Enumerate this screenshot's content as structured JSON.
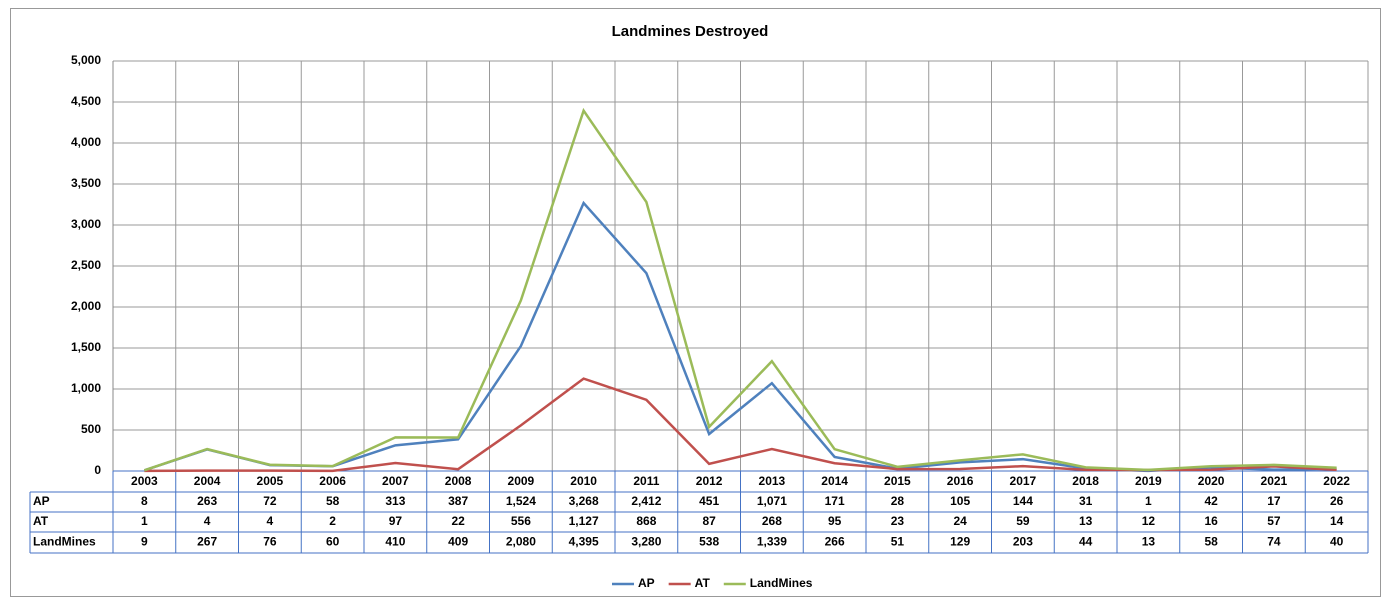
{
  "chart_data": {
    "type": "line",
    "title": "Landmines  Destroyed",
    "categories": [
      "2003",
      "2004",
      "2005",
      "2006",
      "2007",
      "2008",
      "2009",
      "2010",
      "2011",
      "2012",
      "2013",
      "2014",
      "2015",
      "2016",
      "2017",
      "2018",
      "2019",
      "2020",
      "2021",
      "2022"
    ],
    "series": [
      {
        "name": "AP",
        "color": "#4f81bd",
        "values": [
          8,
          263,
          72,
          58,
          313,
          387,
          1524,
          3268,
          2412,
          451,
          1071,
          171,
          28,
          105,
          144,
          31,
          1,
          42,
          17,
          26
        ],
        "value_labels": [
          "8",
          "263",
          "72",
          "58",
          "313",
          "387",
          "1,524",
          "3,268",
          "2,412",
          "451",
          "1,071",
          "171",
          "28",
          "105",
          "144",
          "31",
          "1",
          "42",
          "17",
          "26"
        ]
      },
      {
        "name": "AT",
        "color": "#c0504d",
        "values": [
          1,
          4,
          4,
          2,
          97,
          22,
          556,
          1127,
          868,
          87,
          268,
          95,
          23,
          24,
          59,
          13,
          12,
          16,
          57,
          14
        ],
        "value_labels": [
          "1",
          "4",
          "4",
          "2",
          "97",
          "22",
          "556",
          "1,127",
          "868",
          "87",
          "268",
          "95",
          "23",
          "24",
          "59",
          "13",
          "12",
          "16",
          "57",
          "14"
        ]
      },
      {
        "name": "LandMines",
        "color": "#9bbb59",
        "values": [
          9,
          267,
          76,
          60,
          410,
          409,
          2080,
          4395,
          3280,
          538,
          1339,
          266,
          51,
          129,
          203,
          44,
          13,
          58,
          74,
          40
        ],
        "value_labels": [
          "9",
          "267",
          "76",
          "60",
          "410",
          "409",
          "2,080",
          "4,395",
          "3,280",
          "538",
          "1,339",
          "266",
          "51",
          "129",
          "203",
          "44",
          "13",
          "58",
          "74",
          "40"
        ]
      }
    ],
    "ylim": [
      0,
      5000
    ],
    "yticks": [
      0,
      500,
      {
        "value": 1000,
        "label": "1,000"
      },
      {
        "value": 1500,
        "label": "1,500"
      },
      {
        "value": 2000,
        "label": "2,000"
      },
      {
        "value": 2500,
        "label": "2,500"
      },
      {
        "value": 3000,
        "label": "3,000"
      },
      {
        "value": 3500,
        "label": "3,500"
      },
      {
        "value": 4000,
        "label": "4,000"
      },
      {
        "value": 4500,
        "label": "4,500"
      },
      {
        "value": 5000,
        "label": "5,000"
      }
    ],
    "grid": true,
    "legend": "bottom"
  }
}
